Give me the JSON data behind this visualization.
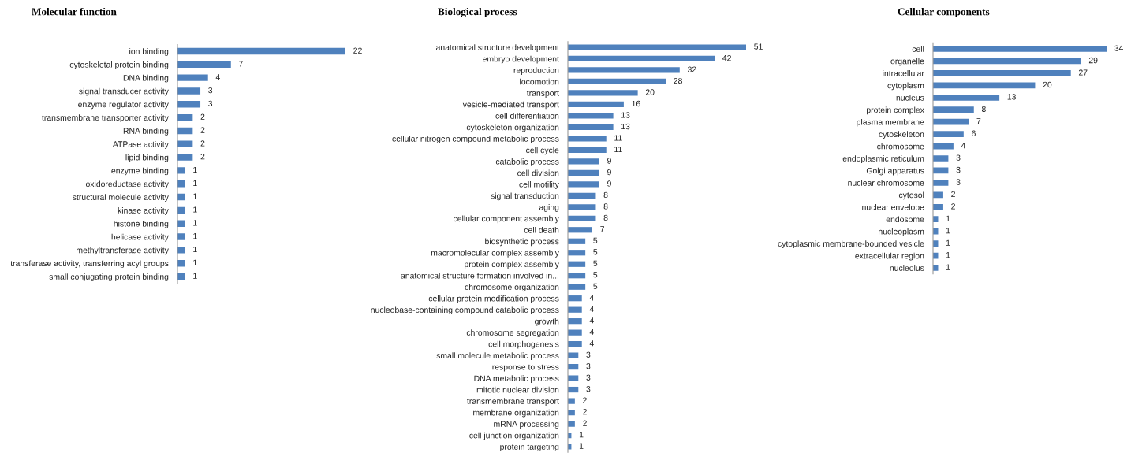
{
  "chart_data": [
    {
      "type": "bar",
      "orientation": "horizontal",
      "title": "Molecular function",
      "color": "#4f81bd",
      "data_labels": true,
      "tick_labels": "y",
      "categories": [
        "ion binding",
        "cytoskeletal protein binding",
        "DNA binding",
        "signal transducer activity",
        "enzyme regulator activity",
        "transmembrane transporter activity",
        "RNA binding",
        "ATPase activity",
        "lipid binding",
        "enzyme binding",
        "oxidoreductase activity",
        "structural molecule activity",
        "kinase activity",
        "histone binding",
        "helicase activity",
        "methyltransferase activity",
        "transferase activity, transferring acyl groups",
        "small conjugating protein binding"
      ],
      "values": [
        22,
        7,
        4,
        3,
        3,
        2,
        2,
        2,
        2,
        1,
        1,
        1,
        1,
        1,
        1,
        1,
        1,
        1
      ]
    },
    {
      "type": "bar",
      "orientation": "horizontal",
      "title": "Biological process",
      "color": "#4f81bd",
      "data_labels": true,
      "tick_labels": "y",
      "categories": [
        "anatomical structure development",
        "embryo development",
        "reproduction",
        "locomotion",
        "transport",
        "vesicle-mediated transport",
        "cell differentiation",
        "cytoskeleton organization",
        "cellular nitrogen compound metabolic process",
        "cell cycle",
        "catabolic process",
        "cell division",
        "cell motility",
        "signal transduction",
        "aging",
        "cellular component assembly",
        "cell death",
        "biosynthetic process",
        "macromolecular complex assembly",
        "protein complex assembly",
        "anatomical structure formation involved in...",
        "chromosome organization",
        "cellular protein modification process",
        "nucleobase-containing compound catabolic process",
        "growth",
        "chromosome segregation",
        "cell morphogenesis",
        "small molecule metabolic process",
        "response to stress",
        "DNA metabolic process",
        "mitotic nuclear division",
        "transmembrane transport",
        "membrane organization",
        "mRNA processing",
        "cell junction organization",
        "protein targeting"
      ],
      "values": [
        51,
        42,
        32,
        28,
        20,
        16,
        13,
        13,
        11,
        11,
        9,
        9,
        9,
        8,
        8,
        8,
        7,
        5,
        5,
        5,
        5,
        5,
        4,
        4,
        4,
        4,
        4,
        3,
        3,
        3,
        3,
        2,
        2,
        2,
        1,
        1
      ]
    },
    {
      "type": "bar",
      "orientation": "horizontal",
      "title": "Cellular components",
      "color": "#4f81bd",
      "data_labels": true,
      "tick_labels": "y",
      "categories": [
        "cell",
        "organelle",
        "intracellular",
        "cytoplasm",
        "nucleus",
        "protein complex",
        "plasma membrane",
        "cytoskeleton",
        "chromosome",
        "endoplasmic reticulum",
        "Golgi apparatus",
        "nuclear chromosome",
        "cytosol",
        "nuclear envelope",
        "endosome",
        "nucleoplasm",
        "cytoplasmic membrane-bounded vesicle",
        "extracellular region",
        "nucleolus"
      ],
      "values": [
        34,
        29,
        27,
        20,
        13,
        8,
        7,
        6,
        4,
        3,
        3,
        3,
        2,
        2,
        1,
        1,
        1,
        1,
        1
      ]
    }
  ]
}
